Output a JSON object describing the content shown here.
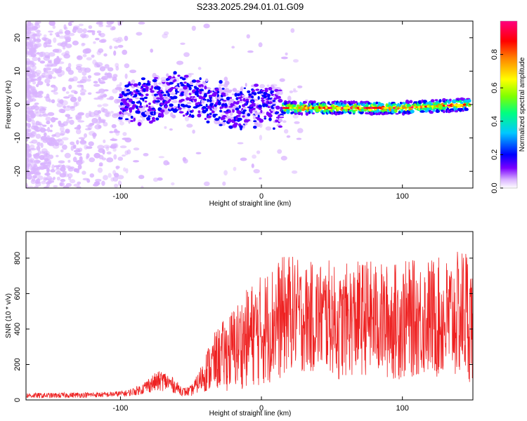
{
  "title": "S233.2025.294.01.01.G09",
  "chart_data": [
    {
      "type": "heatmap",
      "xlabel": "Height of straight line (km)",
      "ylabel": "Frequency (Hz)",
      "xlim": [
        -167,
        150
      ],
      "ylim": [
        -25,
        25
      ],
      "xticks": [
        {
          "v": -100,
          "t": "-100"
        },
        {
          "v": 0,
          "t": "0"
        },
        {
          "v": 100,
          "t": "100"
        }
      ],
      "yticks": [
        {
          "v": 20,
          "t": "20"
        },
        {
          "v": 10,
          "t": "10"
        },
        {
          "v": 0,
          "t": "0"
        },
        {
          "v": -10,
          "t": "-10"
        },
        {
          "v": -20,
          "t": "-20"
        }
      ],
      "colorbar": {
        "label": "Normalized spectral amplitude",
        "range": [
          0,
          1
        ],
        "ticks": [
          {
            "v": 0.0,
            "t": "0.0"
          },
          {
            "v": 0.2,
            "t": "0.2"
          },
          {
            "v": 0.4,
            "t": "0.4"
          },
          {
            "v": 0.6,
            "t": "0.6"
          },
          {
            "v": 0.8,
            "t": "0.8"
          }
        ],
        "colors": [
          "#ffffff",
          "#d9b3ff",
          "#7a00ff",
          "#0000ff",
          "#00c8ff",
          "#00ff80",
          "#80ff00",
          "#ffff00",
          "#ff8000",
          "#ff0000",
          "#ff0080"
        ]
      },
      "ridge_centerline_hz": [
        {
          "x": -100,
          "y": 0
        },
        {
          "x": -60,
          "y": 3
        },
        {
          "x": -40,
          "y": 2
        },
        {
          "x": -20,
          "y": -1
        },
        {
          "x": 0,
          "y": 0
        },
        {
          "x": 15,
          "y": -1
        },
        {
          "x": 50,
          "y": -1
        },
        {
          "x": 100,
          "y": -1
        },
        {
          "x": 145,
          "y": 0
        }
      ]
    },
    {
      "type": "line",
      "xlabel": "Height of straight line (km)",
      "ylabel": "SNR (10 * v/v)",
      "xlim": [
        -167,
        150
      ],
      "ylim": [
        0,
        950
      ],
      "xticks": [
        {
          "v": -100,
          "t": "-100"
        },
        {
          "v": 0,
          "t": "0"
        },
        {
          "v": 100,
          "t": "100"
        }
      ],
      "yticks": [
        {
          "v": 0,
          "t": "0"
        },
        {
          "v": 200,
          "t": "200"
        },
        {
          "v": 400,
          "t": "400"
        },
        {
          "v": 600,
          "t": "600"
        },
        {
          "v": 800,
          "t": "800"
        }
      ],
      "series": [
        {
          "name": "SNR",
          "color": "#ee2222",
          "x": [
            -167,
            -150,
            -130,
            -110,
            -95,
            -85,
            -80,
            -75,
            -70,
            -65,
            -60,
            -55,
            -50,
            -45,
            -40,
            -35,
            -30,
            -25,
            -20,
            -15,
            -10,
            -5,
            0,
            5,
            10,
            15,
            20,
            25,
            30,
            40,
            50,
            55,
            60,
            70,
            75,
            80,
            90,
            100,
            110,
            120,
            130,
            140,
            145,
            150
          ],
          "mean": [
            25,
            25,
            28,
            30,
            38,
            60,
            85,
            100,
            110,
            95,
            70,
            45,
            50,
            95,
            155,
            200,
            240,
            260,
            290,
            320,
            350,
            380,
            390,
            420,
            450,
            460,
            500,
            480,
            460,
            470,
            470,
            400,
            450,
            460,
            470,
            460,
            440,
            450,
            460,
            470,
            450,
            480,
            500,
            420
          ],
          "amp": [
            15,
            15,
            15,
            15,
            18,
            30,
            45,
            55,
            60,
            50,
            35,
            25,
            30,
            55,
            110,
            160,
            180,
            210,
            240,
            260,
            280,
            300,
            320,
            330,
            340,
            350,
            330,
            320,
            310,
            320,
            320,
            300,
            320,
            330,
            330,
            320,
            330,
            340,
            330,
            340,
            350,
            360,
            400,
            320
          ]
        }
      ]
    }
  ]
}
